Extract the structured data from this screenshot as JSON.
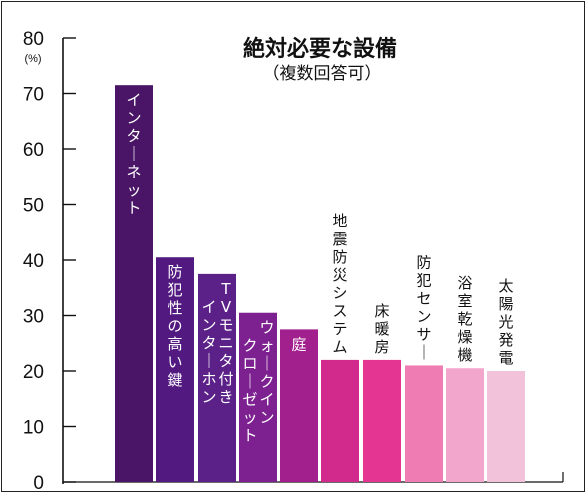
{
  "chart_data": {
    "type": "bar",
    "title": "絶対必要な設備",
    "subtitle": "（複数回答可）",
    "unit": "(%)",
    "ylim": [
      0,
      80
    ],
    "yticks": [
      0,
      10,
      20,
      30,
      40,
      50,
      60,
      70,
      80
    ],
    "categories": [
      "インターネット",
      "防犯性の高い鍵",
      "TVモニタ付きインターホン",
      "ウォークインクローゼット",
      "庭",
      "地震防災システム",
      "床暖房",
      "防犯センサー",
      "浴室乾燥機",
      "太陽光発電"
    ],
    "values": [
      71.5,
      40.5,
      37.5,
      30.5,
      27.5,
      22,
      22,
      21,
      20.5,
      20
    ],
    "colors": [
      "#4a1566",
      "#521a80",
      "#5c2188",
      "#7e2190",
      "#a21f8e",
      "#d12a8c",
      "#e53592",
      "#f07cb4",
      "#f3a6cb",
      "#f1c2da"
    ]
  }
}
